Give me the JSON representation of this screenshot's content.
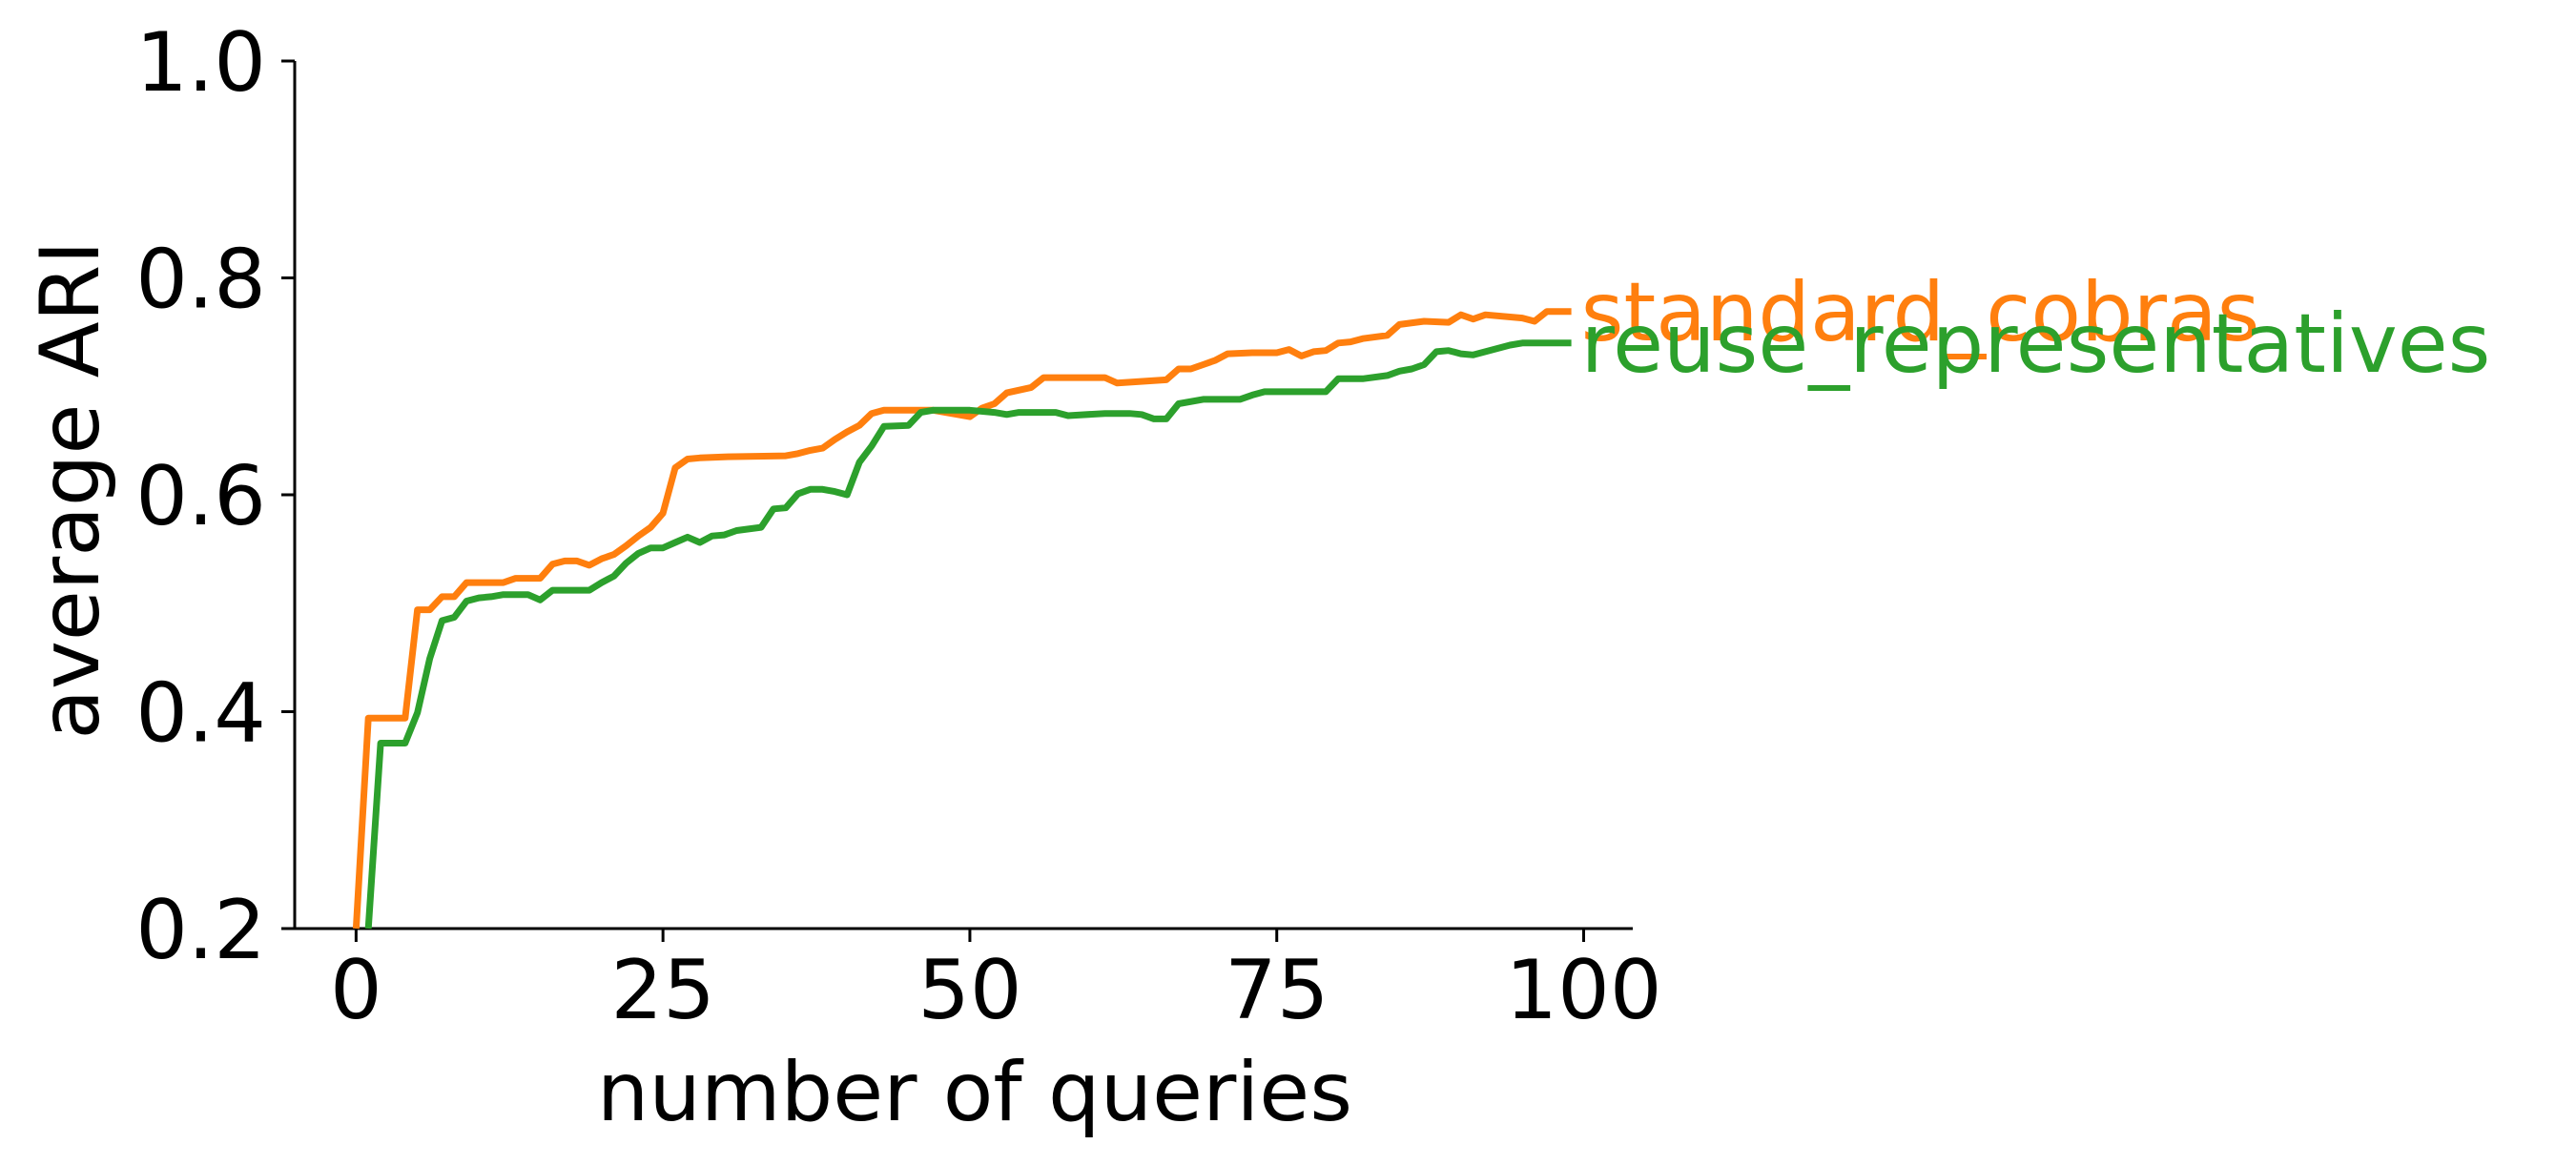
{
  "chart_data": {
    "type": "line",
    "title": "",
    "xlabel": "number of queries",
    "ylabel": "average ARI",
    "xlim": [
      -5,
      104
    ],
    "ylim": [
      0.2,
      1.0
    ],
    "xticks": [
      0,
      25,
      50,
      75,
      100
    ],
    "xtick_labels": [
      "0",
      "25",
      "50",
      "75",
      "100"
    ],
    "yticks": [
      0.2,
      0.4,
      0.6,
      0.8,
      1.0
    ],
    "ytick_labels": [
      "0.2",
      "0.4",
      "0.6",
      "0.8",
      "1.0"
    ],
    "grid": false,
    "legend": "inline labels at line ends (right)",
    "series": [
      {
        "name": "standard_cobras",
        "color": "#ff7f0e",
        "points": [
          [
            0,
            0.2
          ],
          [
            1,
            0.394
          ],
          [
            2,
            0.394
          ],
          [
            3,
            0.394
          ],
          [
            4,
            0.394
          ],
          [
            5,
            0.494
          ],
          [
            6,
            0.494
          ],
          [
            7,
            0.506
          ],
          [
            8,
            0.506
          ],
          [
            9,
            0.519
          ],
          [
            10,
            0.519
          ],
          [
            12,
            0.519
          ],
          [
            13,
            0.523
          ],
          [
            15,
            0.523
          ],
          [
            16,
            0.536
          ],
          [
            17,
            0.539
          ],
          [
            18,
            0.539
          ],
          [
            19,
            0.535
          ],
          [
            20,
            0.541
          ],
          [
            21,
            0.545
          ],
          [
            22,
            0.553
          ],
          [
            23,
            0.562
          ],
          [
            24,
            0.57
          ],
          [
            25,
            0.583
          ],
          [
            26,
            0.625
          ],
          [
            27,
            0.633
          ],
          [
            28,
            0.634
          ],
          [
            30,
            0.635
          ],
          [
            35,
            0.636
          ],
          [
            36,
            0.638
          ],
          [
            37,
            0.641
          ],
          [
            38,
            0.643
          ],
          [
            39,
            0.651
          ],
          [
            40,
            0.658
          ],
          [
            41,
            0.664
          ],
          [
            42,
            0.675
          ],
          [
            43,
            0.678
          ],
          [
            46,
            0.678
          ],
          [
            47,
            0.678
          ],
          [
            48,
            0.676
          ],
          [
            49,
            0.674
          ],
          [
            50,
            0.672
          ],
          [
            51,
            0.68
          ],
          [
            52,
            0.684
          ],
          [
            53,
            0.694
          ],
          [
            55,
            0.699
          ],
          [
            56,
            0.708
          ],
          [
            61,
            0.708
          ],
          [
            62,
            0.703
          ],
          [
            66,
            0.706
          ],
          [
            67,
            0.716
          ],
          [
            68,
            0.716
          ],
          [
            69,
            0.72
          ],
          [
            70,
            0.724
          ],
          [
            71,
            0.73
          ],
          [
            73,
            0.731
          ],
          [
            75,
            0.731
          ],
          [
            76,
            0.734
          ],
          [
            77,
            0.728
          ],
          [
            78,
            0.732
          ],
          [
            79,
            0.733
          ],
          [
            80,
            0.74
          ],
          [
            81,
            0.741
          ],
          [
            82,
            0.744
          ],
          [
            84,
            0.747
          ],
          [
            85,
            0.757
          ],
          [
            87,
            0.76
          ],
          [
            89,
            0.759
          ],
          [
            90,
            0.766
          ],
          [
            91,
            0.762
          ],
          [
            92,
            0.766
          ],
          [
            95,
            0.763
          ],
          [
            96,
            0.76
          ],
          [
            97,
            0.769
          ],
          [
            99,
            0.769
          ]
        ]
      },
      {
        "name": "reuse_representatives",
        "color": "#2ca02c",
        "points": [
          [
            1,
            0.2
          ],
          [
            2,
            0.371
          ],
          [
            4,
            0.371
          ],
          [
            5,
            0.399
          ],
          [
            6,
            0.449
          ],
          [
            7,
            0.484
          ],
          [
            8,
            0.487
          ],
          [
            9,
            0.502
          ],
          [
            10,
            0.505
          ],
          [
            11,
            0.506
          ],
          [
            12,
            0.508
          ],
          [
            14,
            0.508
          ],
          [
            15,
            0.503
          ],
          [
            16,
            0.512
          ],
          [
            19,
            0.512
          ],
          [
            20,
            0.519
          ],
          [
            21,
            0.525
          ],
          [
            22,
            0.537
          ],
          [
            23,
            0.546
          ],
          [
            24,
            0.551
          ],
          [
            25,
            0.551
          ],
          [
            26,
            0.556
          ],
          [
            27,
            0.561
          ],
          [
            28,
            0.556
          ],
          [
            29,
            0.562
          ],
          [
            30,
            0.563
          ],
          [
            31,
            0.567
          ],
          [
            33,
            0.57
          ],
          [
            34,
            0.587
          ],
          [
            35,
            0.588
          ],
          [
            36,
            0.601
          ],
          [
            37,
            0.605
          ],
          [
            38,
            0.605
          ],
          [
            39,
            0.603
          ],
          [
            40,
            0.6
          ],
          [
            41,
            0.63
          ],
          [
            42,
            0.645
          ],
          [
            43,
            0.663
          ],
          [
            45,
            0.664
          ],
          [
            46,
            0.676
          ],
          [
            47,
            0.678
          ],
          [
            50,
            0.678
          ],
          [
            52,
            0.676
          ],
          [
            53,
            0.674
          ],
          [
            54,
            0.676
          ],
          [
            57,
            0.676
          ],
          [
            58,
            0.673
          ],
          [
            61,
            0.675
          ],
          [
            63,
            0.675
          ],
          [
            64,
            0.674
          ],
          [
            65,
            0.67
          ],
          [
            66,
            0.67
          ],
          [
            67,
            0.684
          ],
          [
            69,
            0.688
          ],
          [
            72,
            0.688
          ],
          [
            73,
            0.692
          ],
          [
            74,
            0.695
          ],
          [
            79,
            0.695
          ],
          [
            80,
            0.707
          ],
          [
            82,
            0.707
          ],
          [
            84,
            0.71
          ],
          [
            85,
            0.714
          ],
          [
            86,
            0.716
          ],
          [
            87,
            0.72
          ],
          [
            88,
            0.732
          ],
          [
            89,
            0.733
          ],
          [
            90,
            0.73
          ],
          [
            91,
            0.729
          ],
          [
            94,
            0.738
          ],
          [
            95,
            0.74
          ],
          [
            99,
            0.74
          ]
        ]
      }
    ]
  }
}
